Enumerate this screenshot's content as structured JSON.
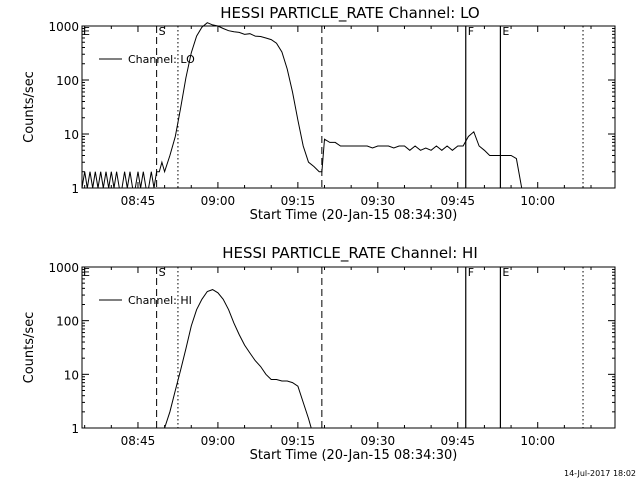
{
  "footer": {
    "stamp": "14-Jul-2017 18:02"
  },
  "chart_data": [
    {
      "type": "line",
      "title": "HESSI PARTICLE_RATE Channel: LO",
      "xlabel": "Start Time (20-Jan-15 08:34:30)",
      "ylabel": "Counts/sec",
      "yscale": "log",
      "ylim": [
        1,
        1000
      ],
      "xlim": [
        "08:34:30",
        "10:14:30"
      ],
      "xticks": [
        "08:45",
        "09:00",
        "09:15",
        "09:30",
        "09:45",
        "10:00"
      ],
      "yticks": [
        "1",
        "10",
        "100",
        "1000"
      ],
      "legend": [
        "Channel: LO"
      ],
      "legend_position": "upper-left",
      "markers": {
        "dashed": [
          "08:48:30",
          "09:19:30"
        ],
        "dotted": [
          "08:52:30",
          "10:08:30"
        ],
        "solid": [
          "09:46:30",
          "09:53:00"
        ],
        "labels": [
          {
            "text": "S",
            "at": "08:48:30"
          },
          {
            "text": "F",
            "at": "09:46:30"
          },
          {
            "text": "E",
            "at": "09:53:00"
          }
        ]
      },
      "series": [
        {
          "name": "Channel: LO",
          "x": [
            "08:34:30",
            "08:35:00",
            "08:35:30",
            "08:36:00",
            "08:36:30",
            "08:37:00",
            "08:37:30",
            "08:38:00",
            "08:38:30",
            "08:39:00",
            "08:39:30",
            "08:40:00",
            "08:40:30",
            "08:41:00",
            "08:41:30",
            "08:42:00",
            "08:42:30",
            "08:43:00",
            "08:43:30",
            "08:44:00",
            "08:44:30",
            "08:45:00",
            "08:45:30",
            "08:46:00",
            "08:46:30",
            "08:47:00",
            "08:47:30",
            "08:48:00",
            "08:48:30",
            "08:49:00",
            "08:49:30",
            "08:50:00",
            "08:51:00",
            "08:52:00",
            "08:53:00",
            "08:54:00",
            "08:55:00",
            "08:56:00",
            "08:57:00",
            "08:58:00",
            "08:59:00",
            "09:00:00",
            "09:01:00",
            "09:02:00",
            "09:03:00",
            "09:04:00",
            "09:05:00",
            "09:06:00",
            "09:07:00",
            "09:08:00",
            "09:09:00",
            "09:10:00",
            "09:11:00",
            "09:12:00",
            "09:13:00",
            "09:14:00",
            "09:15:00",
            "09:16:00",
            "09:17:00",
            "09:18:00",
            "09:19:00",
            "09:19:30",
            "09:20:00",
            "09:21:00",
            "09:22:00",
            "09:23:00",
            "09:24:00",
            "09:25:00",
            "09:26:00",
            "09:27:00",
            "09:28:00",
            "09:29:00",
            "09:30:00",
            "09:31:00",
            "09:32:00",
            "09:33:00",
            "09:34:00",
            "09:35:00",
            "09:36:00",
            "09:37:00",
            "09:38:00",
            "09:39:00",
            "09:40:00",
            "09:41:00",
            "09:42:00",
            "09:43:00",
            "09:44:00",
            "09:45:00",
            "09:46:00",
            "09:47:00",
            "09:48:00",
            "09:49:00",
            "09:50:00",
            "09:51:00",
            "09:52:00",
            "09:53:00",
            "09:54:00",
            "09:55:00",
            "09:56:00",
            "09:57:00",
            "09:58:00",
            "09:59:00",
            "10:00:00",
            "10:01:00",
            "10:02:00",
            "10:03:00",
            "10:04:00",
            "10:05:00",
            "10:06:00",
            "10:07:00",
            "10:08:00"
          ],
          "y": [
            1,
            2,
            1,
            2,
            1,
            2,
            1,
            2,
            1,
            2,
            1,
            2,
            1,
            2,
            1,
            1,
            2,
            1,
            2,
            1,
            1,
            2,
            1,
            2,
            1,
            1,
            2,
            1,
            2,
            2,
            3,
            2,
            4,
            9,
            30,
            110,
            320,
            650,
            950,
            1150,
            1050,
            1000,
            900,
            820,
            780,
            760,
            700,
            720,
            650,
            640,
            600,
            560,
            480,
            330,
            160,
            60,
            18,
            6,
            3,
            2.5,
            2,
            2,
            8,
            7,
            7,
            6,
            6,
            6,
            6,
            6,
            6,
            5.5,
            6,
            6,
            6,
            5.5,
            6,
            6,
            5,
            6,
            5,
            5.5,
            5,
            6,
            5,
            6,
            5,
            6,
            6,
            9,
            11,
            6,
            5,
            4,
            4,
            4,
            4,
            4,
            3.5,
            1,
            1,
            1,
            1,
            1,
            1,
            1,
            1,
            1,
            1,
            1,
            1
          ]
        }
      ]
    },
    {
      "type": "line",
      "title": "HESSI PARTICLE_RATE Channel: HI",
      "xlabel": "Start Time (20-Jan-15 08:34:30)",
      "ylabel": "Counts/sec",
      "yscale": "log",
      "ylim": [
        1,
        1000
      ],
      "xlim": [
        "08:34:30",
        "10:14:30"
      ],
      "xticks": [
        "08:45",
        "09:00",
        "09:15",
        "09:30",
        "09:45",
        "10:00"
      ],
      "yticks": [
        "1",
        "10",
        "100",
        "1000"
      ],
      "legend": [
        "Channel: HI"
      ],
      "legend_position": "upper-left",
      "markers": {
        "dashed": [
          "08:48:30",
          "09:19:30"
        ],
        "dotted": [
          "08:52:30",
          "10:08:30"
        ],
        "solid": [
          "09:46:30",
          "09:53:00"
        ],
        "labels": [
          {
            "text": "S",
            "at": "08:48:30"
          },
          {
            "text": "F",
            "at": "09:46:30"
          },
          {
            "text": "E",
            "at": "09:53:00"
          }
        ]
      },
      "series": [
        {
          "name": "Channel: HI",
          "x": [
            "08:50:00",
            "08:51:00",
            "08:52:00",
            "08:53:00",
            "08:54:00",
            "08:55:00",
            "08:56:00",
            "08:57:00",
            "08:58:00",
            "08:59:00",
            "09:00:00",
            "09:01:00",
            "09:02:00",
            "09:03:00",
            "09:04:00",
            "09:05:00",
            "09:06:00",
            "09:07:00",
            "09:08:00",
            "09:09:00",
            "09:10:00",
            "09:11:00",
            "09:12:00",
            "09:13:00",
            "09:14:00",
            "09:15:00",
            "09:16:00",
            "09:17:00",
            "09:17:30"
          ],
          "y": [
            1,
            2,
            5,
            12,
            30,
            80,
            160,
            250,
            350,
            380,
            330,
            250,
            160,
            90,
            55,
            35,
            25,
            18,
            14,
            10,
            8,
            8,
            7.5,
            7.5,
            7,
            6,
            3,
            1.5,
            1
          ]
        }
      ]
    }
  ]
}
